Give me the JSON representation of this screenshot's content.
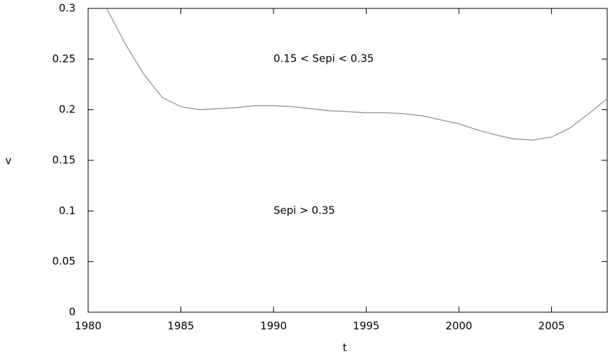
{
  "chart_data": {
    "type": "line",
    "xlabel": "t",
    "ylabel": "v",
    "x": [
      1981,
      1982,
      1983,
      1984,
      1985,
      1986,
      1987,
      1988,
      1989,
      1990,
      1991,
      1992,
      1993,
      1994,
      1995,
      1996,
      1997,
      1998,
      1999,
      2000,
      2001,
      2002,
      2003,
      2004,
      2005,
      2006,
      2007,
      2008
    ],
    "series": [
      {
        "color": "#8a8a8a",
        "values": [
          0.3,
          0.265,
          0.235,
          0.212,
          0.203,
          0.2,
          0.201,
          0.202,
          0.204,
          0.204,
          0.203,
          0.201,
          0.199,
          0.198,
          0.197,
          0.197,
          0.196,
          0.194,
          0.19,
          0.186,
          0.18,
          0.175,
          0.171,
          0.17,
          0.173,
          0.182,
          0.196,
          0.211
        ]
      }
    ],
    "xlim": [
      1980,
      2008
    ],
    "xticks": [
      1980,
      1985,
      1990,
      1995,
      2000,
      2005
    ],
    "ylim": [
      0,
      0.3
    ],
    "yticks": [
      0,
      0.05,
      0.1,
      0.15,
      0.2,
      0.25,
      0.3
    ],
    "annotations": [
      "0.15 < Sepi < 0.35",
      "Sepi > 0.35"
    ]
  }
}
